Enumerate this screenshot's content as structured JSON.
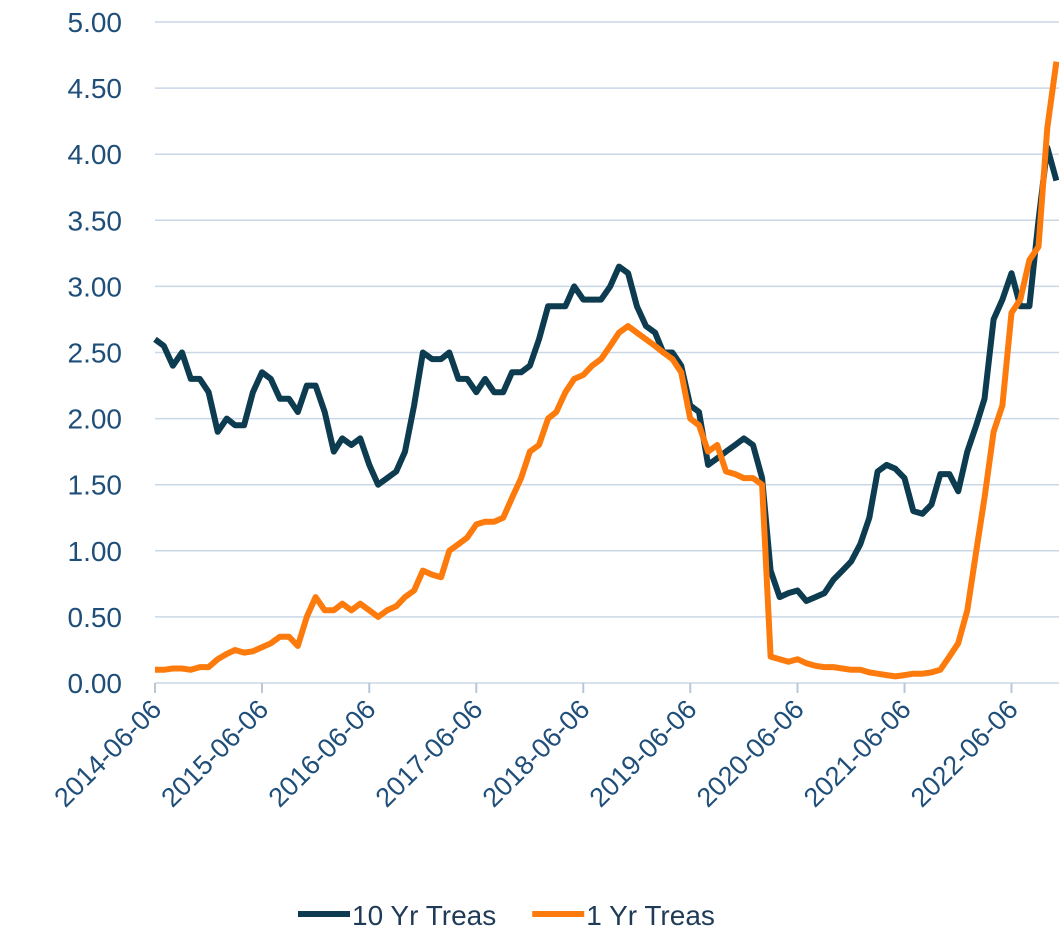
{
  "chart_data": {
    "type": "line",
    "x": [
      "2014-06-06",
      "2014-07-06",
      "2014-08-06",
      "2014-09-06",
      "2014-10-06",
      "2014-11-06",
      "2014-12-06",
      "2015-01-06",
      "2015-02-06",
      "2015-03-06",
      "2015-04-06",
      "2015-05-06",
      "2015-06-06",
      "2015-07-06",
      "2015-08-06",
      "2015-09-06",
      "2015-10-06",
      "2015-11-06",
      "2015-12-06",
      "2016-01-06",
      "2016-02-06",
      "2016-03-06",
      "2016-04-06",
      "2016-05-06",
      "2016-06-06",
      "2016-07-06",
      "2016-08-06",
      "2016-09-06",
      "2016-10-06",
      "2016-11-06",
      "2016-12-06",
      "2017-01-06",
      "2017-02-06",
      "2017-03-06",
      "2017-04-06",
      "2017-05-06",
      "2017-06-06",
      "2017-07-06",
      "2017-08-06",
      "2017-09-06",
      "2017-10-06",
      "2017-11-06",
      "2017-12-06",
      "2018-01-06",
      "2018-02-06",
      "2018-03-06",
      "2018-04-06",
      "2018-05-06",
      "2018-06-06",
      "2018-07-06",
      "2018-08-06",
      "2018-09-06",
      "2018-10-06",
      "2018-11-06",
      "2018-12-06",
      "2019-01-06",
      "2019-02-06",
      "2019-03-06",
      "2019-04-06",
      "2019-05-06",
      "2019-06-06",
      "2019-07-06",
      "2019-08-06",
      "2019-09-06",
      "2019-10-06",
      "2019-11-06",
      "2019-12-06",
      "2020-01-06",
      "2020-02-06",
      "2020-03-06",
      "2020-04-06",
      "2020-05-06",
      "2020-06-06",
      "2020-07-06",
      "2020-08-06",
      "2020-09-06",
      "2020-10-06",
      "2020-11-06",
      "2020-12-06",
      "2021-01-06",
      "2021-02-06",
      "2021-03-06",
      "2021-04-06",
      "2021-05-06",
      "2021-06-06",
      "2021-07-06",
      "2021-08-06",
      "2021-09-06",
      "2021-10-06",
      "2021-11-06",
      "2021-12-06",
      "2022-01-06",
      "2022-02-06",
      "2022-03-06",
      "2022-04-06",
      "2022-05-06",
      "2022-06-06",
      "2022-07-06",
      "2022-08-06",
      "2022-09-06",
      "2022-10-06",
      "2022-11-06"
    ],
    "series": [
      {
        "name": "10 Yr Treas",
        "color": "#0d3b4f",
        "values": [
          2.6,
          2.55,
          2.4,
          2.5,
          2.3,
          2.3,
          2.2,
          1.9,
          2.0,
          1.95,
          1.95,
          2.2,
          2.35,
          2.3,
          2.15,
          2.15,
          2.05,
          2.25,
          2.25,
          2.05,
          1.75,
          1.85,
          1.8,
          1.85,
          1.65,
          1.5,
          1.55,
          1.6,
          1.75,
          2.1,
          2.5,
          2.45,
          2.45,
          2.5,
          2.3,
          2.3,
          2.2,
          2.3,
          2.2,
          2.2,
          2.35,
          2.35,
          2.4,
          2.6,
          2.85,
          2.85,
          2.85,
          3.0,
          2.9,
          2.9,
          2.9,
          3.0,
          3.15,
          3.1,
          2.85,
          2.7,
          2.65,
          2.5,
          2.5,
          2.4,
          2.1,
          2.05,
          1.65,
          1.7,
          1.75,
          1.8,
          1.85,
          1.8,
          1.55,
          0.85,
          0.65,
          0.68,
          0.7,
          0.62,
          0.65,
          0.68,
          0.78,
          0.85,
          0.92,
          1.05,
          1.25,
          1.6,
          1.65,
          1.62,
          1.55,
          1.3,
          1.28,
          1.35,
          1.58,
          1.58,
          1.45,
          1.75,
          1.95,
          2.15,
          2.75,
          2.9,
          3.1,
          2.85,
          2.85,
          3.5,
          4.05,
          3.8
        ]
      },
      {
        "name": "1 Yr Treas",
        "color": "#fd7b0d",
        "values": [
          0.1,
          0.1,
          0.11,
          0.11,
          0.1,
          0.12,
          0.12,
          0.18,
          0.22,
          0.25,
          0.23,
          0.24,
          0.27,
          0.3,
          0.35,
          0.35,
          0.28,
          0.5,
          0.65,
          0.55,
          0.55,
          0.6,
          0.55,
          0.6,
          0.55,
          0.5,
          0.55,
          0.58,
          0.65,
          0.7,
          0.85,
          0.82,
          0.8,
          1.0,
          1.05,
          1.1,
          1.2,
          1.22,
          1.22,
          1.25,
          1.4,
          1.55,
          1.75,
          1.8,
          2.0,
          2.05,
          2.2,
          2.3,
          2.33,
          2.4,
          2.45,
          2.55,
          2.65,
          2.7,
          2.65,
          2.6,
          2.55,
          2.5,
          2.45,
          2.35,
          2.0,
          1.95,
          1.75,
          1.8,
          1.6,
          1.58,
          1.55,
          1.55,
          1.5,
          0.2,
          0.18,
          0.16,
          0.18,
          0.15,
          0.13,
          0.12,
          0.12,
          0.11,
          0.1,
          0.1,
          0.08,
          0.07,
          0.06,
          0.05,
          0.06,
          0.07,
          0.07,
          0.08,
          0.1,
          0.2,
          0.3,
          0.55,
          1.0,
          1.4,
          1.9,
          2.1,
          2.8,
          2.9,
          3.2,
          3.3,
          4.2,
          4.7
        ]
      }
    ],
    "xlim": [
      "2014-06-06",
      "2022-11-15"
    ],
    "xticks": [
      "2014-06-06",
      "2015-06-06",
      "2016-06-06",
      "2017-06-06",
      "2018-06-06",
      "2019-06-06",
      "2020-06-06",
      "2021-06-06",
      "2022-06-06"
    ],
    "ylim": [
      0,
      5
    ],
    "yticks": [
      {
        "value": 0,
        "label": "0.00"
      },
      {
        "value": 0.5,
        "label": "0.50"
      },
      {
        "value": 1,
        "label": "1.00"
      },
      {
        "value": 1.5,
        "label": "1.50"
      },
      {
        "value": 2,
        "label": "2.00"
      },
      {
        "value": 2.5,
        "label": "2.50"
      },
      {
        "value": 3,
        "label": "3.00"
      },
      {
        "value": 3.5,
        "label": "3.50"
      },
      {
        "value": 4,
        "label": "4.00"
      },
      {
        "value": 4.5,
        "label": "4.50"
      },
      {
        "value": 5,
        "label": "5.00"
      }
    ],
    "grid": true,
    "legend": "bottom"
  }
}
